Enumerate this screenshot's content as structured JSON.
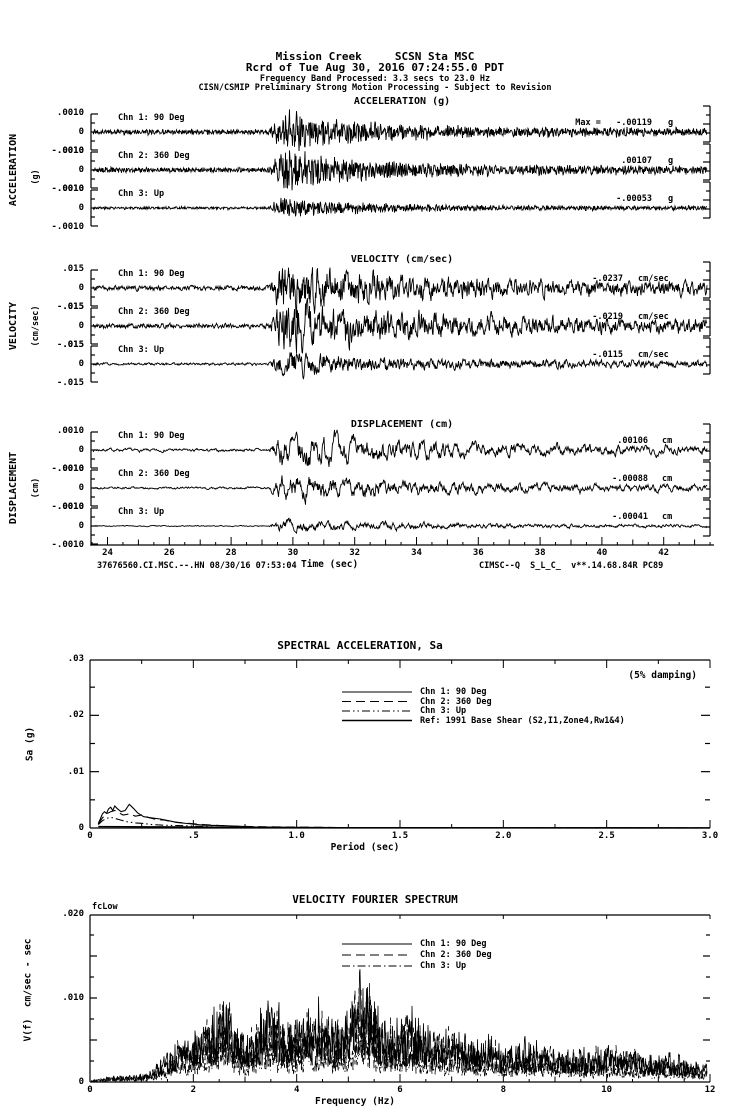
{
  "header": {
    "line1": "Mission Creek     SCSN Sta MSC",
    "line2": "Rcrd of Tue Aug 30, 2016 07:24:55.0 PDT",
    "line3": "Frequency Band Processed: 3.3 secs to 23.0 Hz",
    "line4": "CISN/CSMIP Preliminary Strong Motion Processing - Subject to Revision"
  },
  "footer": {
    "record_id": "37676560.CI.MSC.--.HN 08/30/16 07:53:04",
    "processing_id": "CIMSC--Q  S_L_C_  v**.14.68.84R PC89"
  },
  "time_axis": {
    "label": "Time (sec)",
    "tick_labels": [
      "24",
      "26",
      "28",
      "30",
      "32",
      "34",
      "36",
      "38",
      "40",
      "42"
    ],
    "start_sec": 23.5,
    "end_sec": 43.3,
    "event_start_sec": 29.2
  },
  "chart_data": [
    {
      "id": "acceleration",
      "type": "line",
      "kind": "time-series",
      "title": "ACCELERATION (g)",
      "side_label": "ACCELERATION",
      "side_unit": "(g)",
      "unit": "g",
      "y_tick_labels": [
        ".0010",
        "0",
        "-.0010"
      ],
      "y_full_scale": 0.001,
      "channels": [
        {
          "label": "Chn 1: 90 Deg",
          "max_prefix": "Max =",
          "value_text": "-.00119",
          "peak": -0.00119
        },
        {
          "label": "Chn 2: 360 Deg",
          "max_prefix": "",
          "value_text": ".00107",
          "peak": 0.00107
        },
        {
          "label": "Chn 3: Up",
          "max_prefix": "",
          "value_text": "-.00053",
          "peak": -0.00053
        }
      ]
    },
    {
      "id": "velocity",
      "type": "line",
      "kind": "time-series",
      "title": "VELOCITY (cm/sec)",
      "side_label": "VELOCITY",
      "side_unit": "(cm/sec)",
      "unit": "cm/sec",
      "y_tick_labels": [
        ".015",
        "0",
        "-.015"
      ],
      "y_full_scale": 0.015,
      "channels": [
        {
          "label": "Chn 1: 90 Deg",
          "max_prefix": "",
          "value_text": "-.0237",
          "peak": -0.0237
        },
        {
          "label": "Chn 2: 360 Deg",
          "max_prefix": "",
          "value_text": "-.0219",
          "peak": -0.0219
        },
        {
          "label": "Chn 3: Up",
          "max_prefix": "",
          "value_text": "-.0115",
          "peak": -0.0115
        }
      ]
    },
    {
      "id": "displacement",
      "type": "line",
      "kind": "time-series",
      "title": "DISPLACEMENT (cm)",
      "side_label": "DISPLACEMENT",
      "side_unit": "(cm)",
      "unit": "cm",
      "y_tick_labels": [
        ".0010",
        "0",
        "-.0010"
      ],
      "y_full_scale": 0.001,
      "channels": [
        {
          "label": "Chn 1: 90 Deg",
          "max_prefix": "",
          "value_text": ".00106",
          "peak": 0.00106
        },
        {
          "label": "Chn 2: 360 Deg",
          "max_prefix": "",
          "value_text": "-.00088",
          "peak": -0.00088
        },
        {
          "label": "Chn 3: Up",
          "max_prefix": "",
          "value_text": "-.00041",
          "peak": -0.00041
        }
      ]
    },
    {
      "id": "spectral-acceleration",
      "type": "line",
      "kind": "spectrum",
      "title": "SPECTRAL ACCELERATION, Sa",
      "annotation": "(5% damping)",
      "xlabel": "Period (sec)",
      "ylabel": "Sa (g)",
      "xlim": [
        0,
        3.0
      ],
      "ylim": [
        0,
        0.03
      ],
      "x_tick_labels": [
        "0",
        ".5",
        "1.0",
        "1.5",
        "2.0",
        "2.5",
        "3.0"
      ],
      "y_tick_labels": [
        "0",
        ".01",
        ".02",
        ".03"
      ],
      "legend": [
        {
          "label": "Chn 1: 90 Deg",
          "style": "solid"
        },
        {
          "label": "Chn 2: 360 Deg",
          "style": "long-dash"
        },
        {
          "label": "Chn 3: Up",
          "style": "dash-dot-dot"
        },
        {
          "label": "Ref: 1991 Base Shear (S2,I1,Zone4,Rw1&4)",
          "style": "solid"
        }
      ],
      "series": [
        {
          "name": "Chn 1: 90 Deg",
          "style": "solid",
          "points": [
            [
              0.04,
              0.0008
            ],
            [
              0.05,
              0.0016
            ],
            [
              0.06,
              0.0025
            ],
            [
              0.07,
              0.0029
            ],
            [
              0.08,
              0.0026
            ],
            [
              0.09,
              0.0034
            ],
            [
              0.1,
              0.0037
            ],
            [
              0.11,
              0.0031
            ],
            [
              0.12,
              0.0039
            ],
            [
              0.13,
              0.0035
            ],
            [
              0.15,
              0.0029
            ],
            [
              0.17,
              0.0031
            ],
            [
              0.19,
              0.0042
            ],
            [
              0.21,
              0.0035
            ],
            [
              0.23,
              0.0027
            ],
            [
              0.26,
              0.002
            ],
            [
              0.3,
              0.0018
            ],
            [
              0.34,
              0.0016
            ],
            [
              0.38,
              0.0013
            ],
            [
              0.42,
              0.001
            ],
            [
              0.47,
              0.0008
            ],
            [
              0.55,
              0.0005
            ],
            [
              0.65,
              0.0004
            ],
            [
              0.8,
              0.0002
            ],
            [
              1.0,
              0.0001
            ],
            [
              1.5,
              6e-05
            ],
            [
              2.0,
              4e-05
            ],
            [
              2.5,
              3e-05
            ],
            [
              3.0,
              2e-05
            ]
          ]
        },
        {
          "name": "Chn 2: 360 Deg",
          "style": "long-dash",
          "points": [
            [
              0.04,
              0.0007
            ],
            [
              0.06,
              0.0018
            ],
            [
              0.08,
              0.0025
            ],
            [
              0.1,
              0.0029
            ],
            [
              0.12,
              0.0031
            ],
            [
              0.14,
              0.0027
            ],
            [
              0.16,
              0.0023
            ],
            [
              0.19,
              0.0025
            ],
            [
              0.22,
              0.0021
            ],
            [
              0.25,
              0.0023
            ],
            [
              0.28,
              0.0019
            ],
            [
              0.32,
              0.0015
            ],
            [
              0.36,
              0.0014
            ],
            [
              0.4,
              0.0011
            ],
            [
              0.45,
              0.0009
            ],
            [
              0.55,
              0.0006
            ],
            [
              0.7,
              0.0003
            ],
            [
              0.9,
              0.0002
            ],
            [
              1.2,
              8e-05
            ],
            [
              2.0,
              4e-05
            ],
            [
              3.0,
              2e-05
            ]
          ]
        },
        {
          "name": "Chn 3: Up",
          "style": "dash-dot-dot",
          "points": [
            [
              0.04,
              0.0006
            ],
            [
              0.06,
              0.0013
            ],
            [
              0.08,
              0.0017
            ],
            [
              0.1,
              0.0019
            ],
            [
              0.12,
              0.0017
            ],
            [
              0.15,
              0.0014
            ],
            [
              0.18,
              0.0011
            ],
            [
              0.22,
              0.0009
            ],
            [
              0.26,
              0.0008
            ],
            [
              0.3,
              0.0006
            ],
            [
              0.36,
              0.0005
            ],
            [
              0.45,
              0.0004
            ],
            [
              0.6,
              0.0002
            ],
            [
              0.8,
              0.0001
            ],
            [
              1.2,
              6e-05
            ],
            [
              2.0,
              3e-05
            ],
            [
              3.0,
              2e-05
            ]
          ]
        },
        {
          "name": "Ref: 1991 Base Shear (S2,I1,Zone4,Rw1&4)",
          "style": "solid",
          "points": [
            [
              0.04,
              0.00025
            ],
            [
              0.3,
              0.00022
            ],
            [
              0.5,
              0.00018
            ],
            [
              0.7,
              0.00012
            ],
            [
              0.9,
              8e-05
            ],
            [
              1.2,
              5e-05
            ],
            [
              2.0,
              3e-05
            ],
            [
              3.0,
              2e-05
            ]
          ]
        }
      ]
    },
    {
      "id": "velocity-fourier-spectrum",
      "type": "line",
      "kind": "spectrum",
      "title": "VELOCITY FOURIER SPECTRUM",
      "corner_label": "fcLow",
      "xlabel": "Frequency (Hz)",
      "ylabel": "V(f)  cm/sec - sec",
      "xlim": [
        0,
        12
      ],
      "ylim": [
        0,
        0.02
      ],
      "x_tick_labels": [
        "0",
        "2",
        "4",
        "6",
        "8",
        "10",
        "12"
      ],
      "y_tick_labels": [
        "0",
        ".010",
        ".020"
      ],
      "legend": [
        {
          "label": "Chn 1: 90 Deg",
          "style": "solid"
        },
        {
          "label": "Chn 2: 360 Deg",
          "style": "long-dash"
        },
        {
          "label": "Chn 3: Up",
          "style": "dash-dot"
        }
      ],
      "envelope": [
        [
          0.0,
          0.0002
        ],
        [
          0.4,
          0.0008
        ],
        [
          0.8,
          0.001
        ],
        [
          1.1,
          0.0012
        ],
        [
          1.4,
          0.0035
        ],
        [
          1.7,
          0.006
        ],
        [
          2.0,
          0.007
        ],
        [
          2.3,
          0.009
        ],
        [
          2.6,
          0.014
        ],
        [
          2.8,
          0.009
        ],
        [
          3.0,
          0.007
        ],
        [
          3.2,
          0.0085
        ],
        [
          3.5,
          0.013
        ],
        [
          3.7,
          0.009
        ],
        [
          4.0,
          0.0095
        ],
        [
          4.3,
          0.011
        ],
        [
          4.6,
          0.009
        ],
        [
          4.9,
          0.01
        ],
        [
          5.2,
          0.014
        ],
        [
          5.4,
          0.015
        ],
        [
          5.6,
          0.01
        ],
        [
          5.9,
          0.009
        ],
        [
          6.2,
          0.0105
        ],
        [
          6.5,
          0.008
        ],
        [
          6.8,
          0.007
        ],
        [
          7.1,
          0.0075
        ],
        [
          7.4,
          0.006
        ],
        [
          7.7,
          0.0065
        ],
        [
          8.0,
          0.005
        ],
        [
          8.4,
          0.006
        ],
        [
          8.8,
          0.0055
        ],
        [
          9.2,
          0.005
        ],
        [
          9.6,
          0.0045
        ],
        [
          10.0,
          0.005
        ],
        [
          10.4,
          0.005
        ],
        [
          10.8,
          0.004
        ],
        [
          11.2,
          0.004
        ],
        [
          11.6,
          0.003
        ],
        [
          12.0,
          0.0025
        ]
      ],
      "channels": [
        {
          "name": "Chn 1: 90 Deg",
          "style": "solid",
          "scale": 1.0
        },
        {
          "name": "Chn 2: 360 Deg",
          "style": "long-dash",
          "scale": 0.92
        },
        {
          "name": "Chn 3: Up",
          "style": "dash-dot",
          "scale": 0.55
        }
      ]
    }
  ]
}
